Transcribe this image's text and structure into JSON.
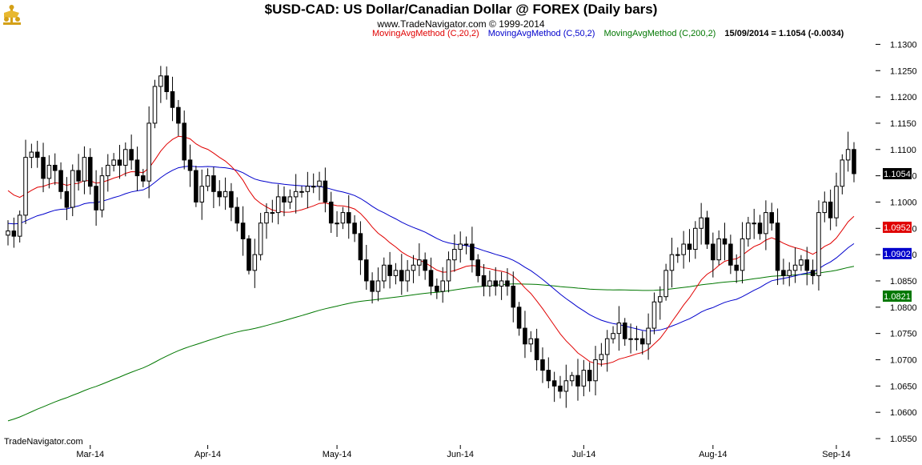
{
  "header": {
    "title": "$USD-CAD:  US Dollar/Canadian Dollar @ FOREX  (Daily bars)",
    "subtitle": "www.TradeNavigator.com © 1999-2014"
  },
  "legend": {
    "ma20": "MovingAvgMethod (C,20,2)",
    "ma50": "MovingAvgMethod (C,50,2)",
    "ma200": "MovingAvgMethod (C,200,2)",
    "last": "15/09/2014 = 1.1054 (-0.0034)"
  },
  "watermark": "TradeNavigator.com",
  "colors": {
    "ma20": "#e00000",
    "ma50": "#0000cc",
    "ma200": "#007700",
    "candle": "#000000",
    "background": "#ffffff"
  },
  "chart_data": {
    "type": "candlestick",
    "ylim": [
      1.055,
      1.1325
    ],
    "yticks": [
      "1.0550",
      "1.0600",
      "1.0650",
      "1.0700",
      "1.0750",
      "1.0800",
      "1.0850",
      "1.0900",
      "1.0950",
      "1.1000",
      "1.1050",
      "1.1100",
      "1.1150",
      "1.1200",
      "1.1250",
      "1.1300"
    ],
    "x_labels": [
      {
        "label": "Mar-14",
        "bar": 14
      },
      {
        "label": "Apr-14",
        "bar": 34
      },
      {
        "label": "May-14",
        "bar": 56
      },
      {
        "label": "Jun-14",
        "bar": 77
      },
      {
        "label": "Jul-14",
        "bar": 98
      },
      {
        "label": "Aug-14",
        "bar": 120
      },
      {
        "label": "Sep-14",
        "bar": 141
      }
    ],
    "price_tags": [
      {
        "value": "1.1054",
        "y": 1.1054,
        "color": "#000000"
      },
      {
        "value": "1.0952",
        "y": 1.0952,
        "color": "#e00000"
      },
      {
        "value": "1.0902",
        "y": 1.0902,
        "color": "#0000cc"
      },
      {
        "value": "1.0821",
        "y": 1.0821,
        "color": "#007700"
      }
    ],
    "closes": [
      1.0945,
      1.0935,
      1.0975,
      1.1085,
      1.1095,
      1.1085,
      1.1045,
      1.107,
      1.106,
      1.102,
      1.099,
      1.106,
      1.104,
      1.1085,
      1.103,
      1.0985,
      1.105,
      1.107,
      1.108,
      1.107,
      1.11,
      1.108,
      1.105,
      1.104,
      1.115,
      1.122,
      1.124,
      1.121,
      1.118,
      1.115,
      1.108,
      1.106,
      1.1,
      1.103,
      1.105,
      1.102,
      1.101,
      1.102,
      1.099,
      1.096,
      1.093,
      1.087,
      1.09,
      1.096,
      1.098,
      1.098,
      1.101,
      1.1,
      1.101,
      1.102,
      1.102,
      1.103,
      1.103,
      1.104,
      1.1,
      1.096,
      1.096,
      1.098,
      1.096,
      1.094,
      1.089,
      1.085,
      1.083,
      1.085,
      1.088,
      1.086,
      1.087,
      1.085,
      1.087,
      1.088,
      1.089,
      1.087,
      1.084,
      1.083,
      1.085,
      1.089,
      1.091,
      1.092,
      1.092,
      1.089,
      1.086,
      1.084,
      1.085,
      1.084,
      1.085,
      1.084,
      1.08,
      1.076,
      1.073,
      1.074,
      1.07,
      1.068,
      1.066,
      1.065,
      1.064,
      1.066,
      1.067,
      1.065,
      1.068,
      1.066,
      1.07,
      1.071,
      1.074,
      1.075,
      1.077,
      1.074,
      1.074,
      1.074,
      1.073,
      1.076,
      1.081,
      1.082,
      1.087,
      1.09,
      1.09,
      1.092,
      1.091,
      1.095,
      1.097,
      1.092,
      1.089,
      1.093,
      1.092,
      1.088,
      1.087,
      1.093,
      1.096,
      1.096,
      1.094,
      1.098,
      1.096,
      1.087,
      1.086,
      1.087,
      1.088,
      1.089,
      1.087,
      1.086,
      1.098,
      1.1,
      1.097,
      1.103,
      1.108,
      1.11,
      1.1054
    ]
  }
}
